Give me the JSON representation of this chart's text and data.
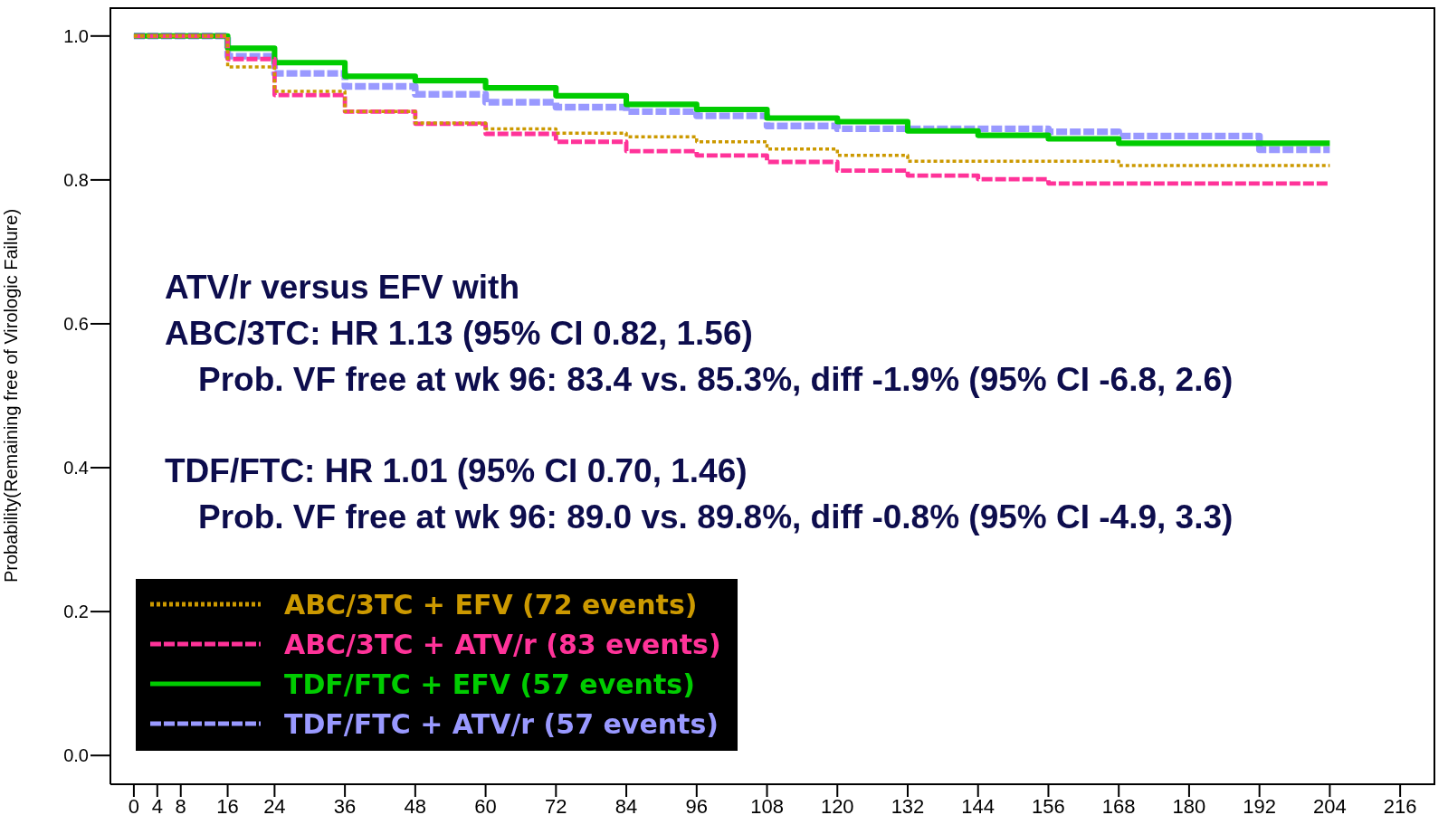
{
  "chart_data": {
    "type": "step",
    "ylabel": "Probability(Remaining free of Virologic Failure)",
    "x": [
      0,
      16,
      24,
      36,
      48,
      60,
      72,
      84,
      96,
      108,
      120,
      132,
      144,
      156,
      168,
      180,
      192,
      204
    ],
    "series": [
      {
        "name": "ABC/3TC + EFV (72 events)",
        "color": "#cc9900",
        "line_style": "dotted",
        "values": [
          1.0,
          0.957,
          0.923,
          0.895,
          0.879,
          0.871,
          0.865,
          0.86,
          0.853,
          0.843,
          0.834,
          0.826,
          0.826,
          0.826,
          0.82,
          0.82,
          0.82,
          0.82
        ]
      },
      {
        "name": "ABC/3TC + ATV/r (83 events)",
        "color": "#ff3399",
        "line_style": "dashed",
        "values": [
          1.0,
          0.968,
          0.918,
          0.895,
          0.878,
          0.864,
          0.853,
          0.84,
          0.834,
          0.825,
          0.813,
          0.806,
          0.801,
          0.795,
          0.795,
          0.795,
          0.795,
          0.795
        ]
      },
      {
        "name": "TDF/FTC + EFV (57 events)",
        "color": "#00cc00",
        "line_style": "solid",
        "values": [
          1.0,
          0.983,
          0.963,
          0.944,
          0.938,
          0.928,
          0.917,
          0.905,
          0.898,
          0.886,
          0.881,
          0.868,
          0.862,
          0.857,
          0.851,
          0.851,
          0.851,
          0.851
        ]
      },
      {
        "name": "TDF/FTC + ATV/r (57 events)",
        "color": "#9999ff",
        "line_style": "dashed",
        "values": [
          1.0,
          0.972,
          0.948,
          0.93,
          0.919,
          0.908,
          0.901,
          0.895,
          0.889,
          0.875,
          0.871,
          0.871,
          0.871,
          0.867,
          0.861,
          0.861,
          0.842,
          0.842
        ]
      }
    ],
    "xlim": [
      -4,
      222
    ],
    "xticks": [
      0,
      4,
      8,
      16,
      24,
      36,
      48,
      60,
      72,
      84,
      96,
      108,
      120,
      132,
      144,
      156,
      168,
      180,
      192,
      204,
      216
    ],
    "ylim": [
      -0.04,
      1.04
    ],
    "yticks": [
      {
        "value": 0,
        "label": "0.0"
      },
      0.2,
      0.4,
      0.6,
      0.8,
      {
        "value": 1,
        "label": "1.0"
      }
    ],
    "grid": false,
    "legend": "bottom left",
    "annotations": [
      "ATV/r versus EFV with",
      "ABC/3TC:  HR 1.13 (95% CI 0.82, 1.56)",
      "Prob. VF free at wk 96:  83.4 vs. 85.3%, diff -1.9% (95% CI -6.8, 2.6)",
      "TDF/FTC:  HR 1.01 (95% CI 0.70, 1.46)",
      "Prob. VF free at wk 96:  89.0 vs. 89.8%, diff -0.8% (95% CI -4.9, 3.3)"
    ]
  }
}
